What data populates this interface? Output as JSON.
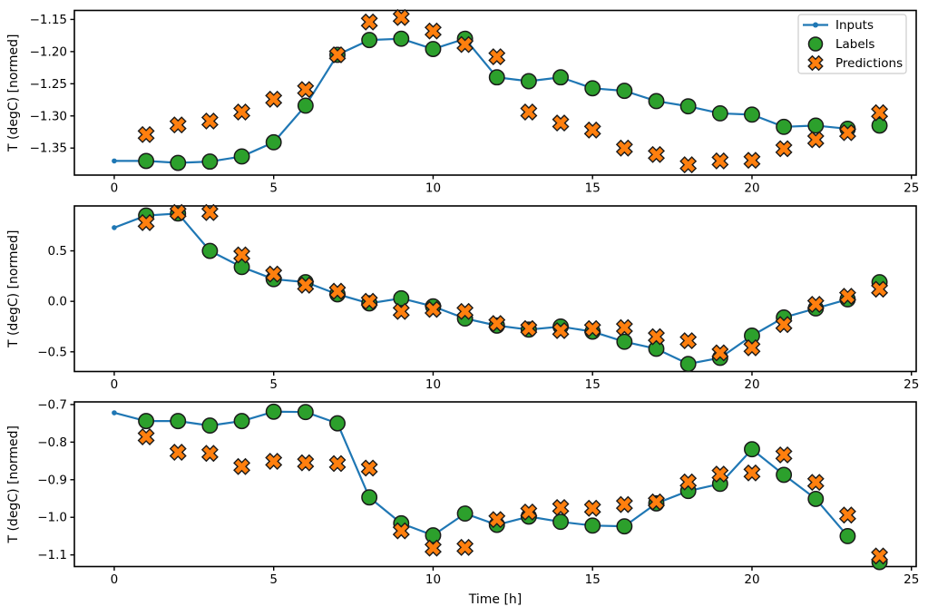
{
  "figure": {
    "xlabel": "Time [h]",
    "xlim": [
      -1.25,
      25.15
    ],
    "x_ticks": {
      "values": [
        0,
        5,
        10,
        15,
        20,
        25
      ],
      "labels": [
        "0",
        "5",
        "10",
        "15",
        "20",
        "25"
      ]
    },
    "legend": {
      "position": "upper right",
      "items": [
        {
          "name": "Inputs",
          "type": "line"
        },
        {
          "name": "Labels",
          "type": "circle"
        },
        {
          "name": "Predictions",
          "type": "cross"
        }
      ]
    },
    "colors": {
      "inputs": "#1f77b4",
      "labels": "#2ca02c",
      "predictions": "#ff7f0e",
      "marker_edge": "#1a1a1a",
      "spine": "#000000",
      "legend_border": "#cccccc"
    },
    "grid": "off"
  },
  "chart_data": [
    {
      "type": "line",
      "title": "",
      "ylabel": "T (degC) [normed]",
      "xlabel": "",
      "ylim": [
        -1.392,
        -1.136
      ],
      "ytick_values": [
        -1.15,
        -1.2,
        -1.25,
        -1.3,
        -1.35
      ],
      "ytick_labels": [
        "−1.15",
        "−1.20",
        "−1.25",
        "−1.30",
        "−1.35"
      ],
      "x_inputs": [
        0,
        1,
        2,
        3,
        4,
        5,
        6,
        7,
        8,
        9,
        10,
        11,
        12,
        13,
        14,
        15,
        16,
        17,
        18,
        19,
        20,
        21,
        22,
        23
      ],
      "inputs": [
        -1.37,
        -1.37,
        -1.373,
        -1.371,
        -1.363,
        -1.341,
        -1.284,
        -1.205,
        -1.182,
        -1.18,
        -1.196,
        -1.18,
        -1.24,
        -1.246,
        -1.24,
        -1.257,
        -1.261,
        -1.277,
        -1.285,
        -1.296,
        -1.298,
        -1.317,
        -1.315,
        -1.32
      ],
      "x_scatter": [
        1,
        2,
        3,
        4,
        5,
        6,
        7,
        8,
        9,
        10,
        11,
        12,
        13,
        14,
        15,
        16,
        17,
        18,
        19,
        20,
        21,
        22,
        23,
        24
      ],
      "labels": [
        -1.37,
        -1.373,
        -1.371,
        -1.363,
        -1.341,
        -1.284,
        -1.205,
        -1.182,
        -1.18,
        -1.196,
        -1.18,
        -1.24,
        -1.246,
        -1.24,
        -1.257,
        -1.261,
        -1.277,
        -1.285,
        -1.296,
        -1.298,
        -1.317,
        -1.315,
        -1.32,
        -1.315
      ],
      "predictions": [
        -1.329,
        -1.314,
        -1.308,
        -1.294,
        -1.274,
        -1.259,
        -1.205,
        -1.154,
        -1.147,
        -1.168,
        -1.189,
        -1.208,
        -1.294,
        -1.311,
        -1.322,
        -1.35,
        -1.36,
        -1.376,
        -1.37,
        -1.369,
        -1.351,
        -1.337,
        -1.326,
        -1.295
      ]
    },
    {
      "type": "line",
      "title": "",
      "ylabel": "T (degC) [normed]",
      "xlabel": "",
      "ylim": [
        -0.695,
        0.945
      ],
      "ytick_values": [
        0.5,
        0.0,
        -0.5
      ],
      "ytick_labels": [
        "0.5",
        "0.0",
        "−0.5"
      ],
      "x_inputs": [
        0,
        1,
        2,
        3,
        4,
        5,
        6,
        7,
        8,
        9,
        10,
        11,
        12,
        13,
        14,
        15,
        16,
        17,
        18,
        19,
        20,
        21,
        22,
        23
      ],
      "inputs": [
        0.73,
        0.85,
        0.87,
        0.5,
        0.34,
        0.22,
        0.19,
        0.07,
        -0.02,
        0.03,
        -0.05,
        -0.17,
        -0.24,
        -0.28,
        -0.25,
        -0.3,
        -0.4,
        -0.47,
        -0.62,
        -0.56,
        -0.34,
        -0.16,
        -0.07,
        0.02
      ],
      "x_scatter": [
        1,
        2,
        3,
        4,
        5,
        6,
        7,
        8,
        9,
        10,
        11,
        12,
        13,
        14,
        15,
        16,
        17,
        18,
        19,
        20,
        21,
        22,
        23,
        24
      ],
      "labels": [
        0.85,
        0.87,
        0.5,
        0.34,
        0.22,
        0.19,
        0.07,
        -0.02,
        0.03,
        -0.05,
        -0.17,
        -0.24,
        -0.28,
        -0.25,
        -0.3,
        -0.4,
        -0.47,
        -0.62,
        -0.56,
        -0.34,
        -0.16,
        -0.07,
        0.02,
        0.19
      ],
      "predictions": [
        0.78,
        0.88,
        0.88,
        0.46,
        0.27,
        0.16,
        0.1,
        0.0,
        -0.1,
        -0.08,
        -0.1,
        -0.22,
        -0.27,
        -0.29,
        -0.27,
        -0.26,
        -0.35,
        -0.39,
        -0.51,
        -0.46,
        -0.23,
        -0.03,
        0.05,
        0.12
      ]
    },
    {
      "type": "line",
      "title": "",
      "ylabel": "T (degC) [normed]",
      "xlabel": "Time [h]",
      "ylim": [
        -1.131,
        -0.693
      ],
      "ytick_values": [
        -0.7,
        -0.8,
        -0.9,
        -1.0,
        -1.1
      ],
      "ytick_labels": [
        "−0.7",
        "−0.8",
        "−0.9",
        "−1.0",
        "−1.1"
      ],
      "x_inputs": [
        0,
        1,
        2,
        3,
        4,
        5,
        6,
        7,
        8,
        9,
        10,
        11,
        12,
        13,
        14,
        15,
        16,
        17,
        18,
        19,
        20,
        21,
        22,
        23
      ],
      "inputs": [
        -0.722,
        -0.744,
        -0.744,
        -0.756,
        -0.744,
        -0.719,
        -0.72,
        -0.75,
        -0.947,
        -1.016,
        -1.048,
        -0.99,
        -1.02,
        -0.998,
        -1.012,
        -1.022,
        -1.024,
        -0.963,
        -0.93,
        -0.911,
        -0.819,
        -0.887,
        -0.951,
        -1.05
      ],
      "x_scatter": [
        1,
        2,
        3,
        4,
        5,
        6,
        7,
        8,
        9,
        10,
        11,
        12,
        13,
        14,
        15,
        16,
        17,
        18,
        19,
        20,
        21,
        22,
        23,
        24
      ],
      "labels": [
        -0.744,
        -0.744,
        -0.756,
        -0.744,
        -0.719,
        -0.72,
        -0.75,
        -0.947,
        -1.016,
        -1.048,
        -0.99,
        -1.02,
        -0.998,
        -1.012,
        -1.022,
        -1.024,
        -0.963,
        -0.93,
        -0.911,
        -0.819,
        -0.887,
        -0.951,
        -1.05,
        -1.119
      ],
      "predictions": [
        -0.786,
        -0.827,
        -0.83,
        -0.865,
        -0.851,
        -0.855,
        -0.857,
        -0.869,
        -1.036,
        -1.082,
        -1.08,
        -1.006,
        -0.986,
        -0.974,
        -0.976,
        -0.966,
        -0.959,
        -0.906,
        -0.885,
        -0.882,
        -0.834,
        -0.907,
        -0.994,
        -1.103
      ]
    }
  ]
}
